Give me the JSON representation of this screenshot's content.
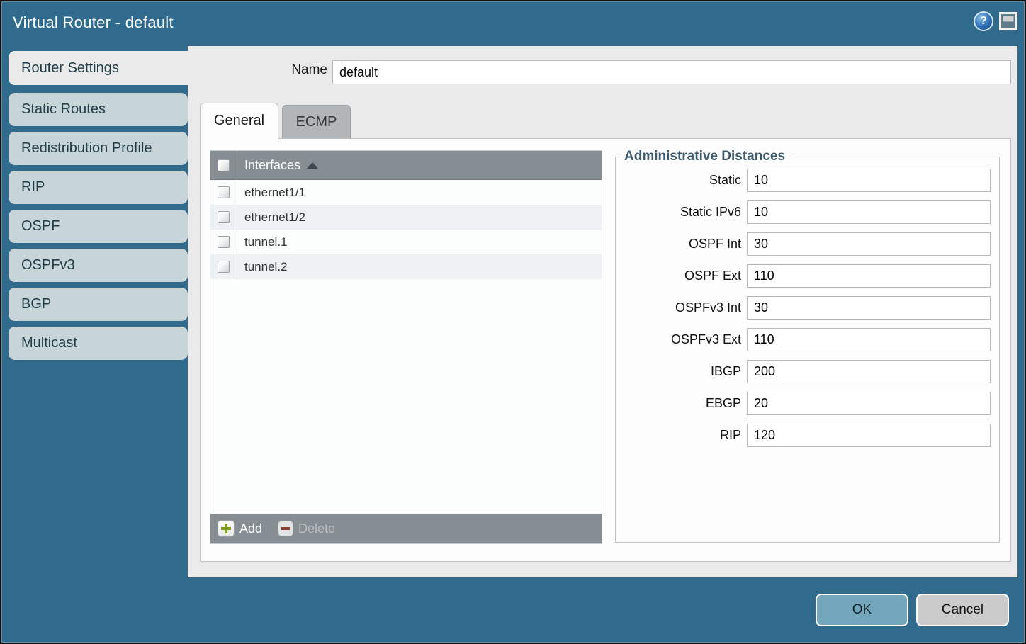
{
  "title_bar": {
    "title": "Virtual Router - default",
    "help_glyph": "?"
  },
  "sidebar": {
    "items": [
      {
        "label": "Router Settings",
        "active": true
      },
      {
        "label": "Static Routes",
        "active": false
      },
      {
        "label": "Redistribution Profile",
        "active": false
      },
      {
        "label": "RIP",
        "active": false
      },
      {
        "label": "OSPF",
        "active": false
      },
      {
        "label": "OSPFv3",
        "active": false
      },
      {
        "label": "BGP",
        "active": false
      },
      {
        "label": "Multicast",
        "active": false
      }
    ]
  },
  "name_field": {
    "label": "Name",
    "value": "default"
  },
  "tabs": [
    {
      "label": "General",
      "active": true
    },
    {
      "label": "ECMP",
      "active": false
    }
  ],
  "interfaces_table": {
    "header": "Interfaces",
    "sort": "ascending",
    "rows": [
      "ethernet1/1",
      "ethernet1/2",
      "tunnel.1",
      "tunnel.2"
    ],
    "add_label": "Add",
    "delete_label": "Delete",
    "delete_enabled": false
  },
  "admin_distances": {
    "legend": "Administrative Distances",
    "fields": [
      {
        "label": "Static",
        "value": "10"
      },
      {
        "label": "Static IPv6",
        "value": "10"
      },
      {
        "label": "OSPF Int",
        "value": "30"
      },
      {
        "label": "OSPF Ext",
        "value": "110"
      },
      {
        "label": "OSPFv3 Int",
        "value": "30"
      },
      {
        "label": "OSPFv3 Ext",
        "value": "110"
      },
      {
        "label": "IBGP",
        "value": "200"
      },
      {
        "label": "EBGP",
        "value": "20"
      },
      {
        "label": "RIP",
        "value": "120"
      }
    ]
  },
  "footer": {
    "ok_label": "OK",
    "cancel_label": "Cancel"
  },
  "colors": {
    "frame_teal": "#306b8e",
    "body_gray": "#eaeaea",
    "sidebar_tab": "#c7d4d8",
    "table_chrome": "#878e93",
    "row_alt": "#edf1f3",
    "ok_button": "#74a6bc",
    "cancel_button": "#cbcbcb",
    "add_green": "#7d9c21",
    "delete_red": "#8b4136",
    "legend_text": "#3d5a6c"
  }
}
